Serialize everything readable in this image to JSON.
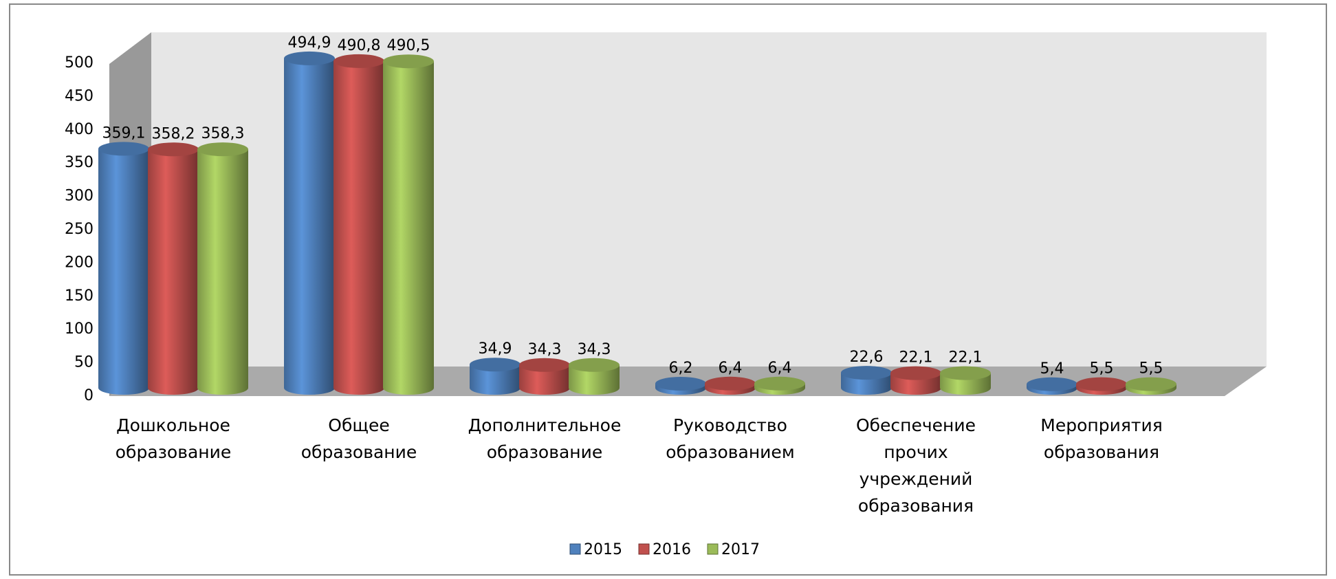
{
  "chart_data": {
    "type": "bar3d",
    "categories": [
      "Дошкольное образование",
      "Общее образование",
      "Дополнительное образование",
      "Руководство образованием",
      "Обеспечение прочих учреждений образования",
      "Мероприятия образования"
    ],
    "series": [
      {
        "name": "2015",
        "color": "#4f81bd",
        "values": [
          359.1,
          494.9,
          34.9,
          6.2,
          22.6,
          5.4
        ],
        "value_labels": [
          "359,1",
          "494,9",
          "34,9",
          "6,2",
          "22,6",
          "5,4"
        ]
      },
      {
        "name": "2016",
        "color": "#c0504d",
        "values": [
          358.2,
          490.8,
          34.3,
          6.4,
          22.1,
          5.5
        ],
        "value_labels": [
          "358,2",
          "490,8",
          "34,3",
          "6,4",
          "22,1",
          "5,5"
        ]
      },
      {
        "name": "2017",
        "color": "#9bbb59",
        "values": [
          358.3,
          490.5,
          34.3,
          6.4,
          22.1,
          5.5
        ],
        "value_labels": [
          "358,3",
          "490,5",
          "34,3",
          "6,4",
          "22,1",
          "5,5"
        ]
      }
    ],
    "ylim": [
      0,
      500
    ],
    "yticks": [
      0,
      50,
      100,
      150,
      200,
      250,
      300,
      350,
      400,
      450,
      500
    ],
    "grid": false,
    "legend": "bottom"
  }
}
